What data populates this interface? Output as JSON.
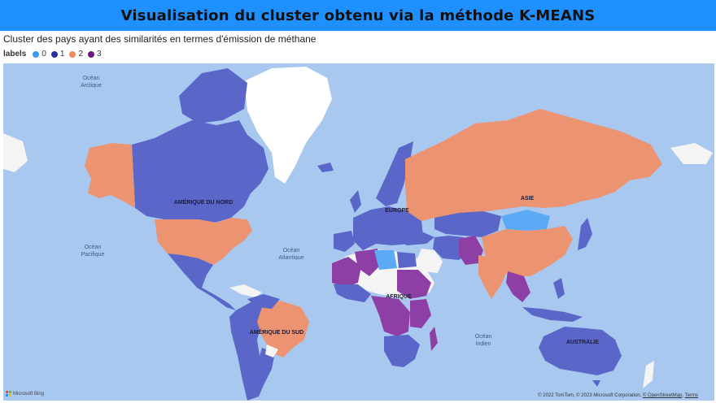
{
  "header": {
    "title": "Visualisation du cluster obtenu via la méthode K-MEANS"
  },
  "visual": {
    "subtitle": "Cluster des pays ayant des similarités en termes d'émission de méthane"
  },
  "legend": {
    "title": "labels",
    "items": [
      {
        "label": "0",
        "color": "#3a9af0"
      },
      {
        "label": "1",
        "color": "#3b4fbf"
      },
      {
        "label": "2",
        "color": "#ef8a5a"
      },
      {
        "label": "3",
        "color": "#7b1e8e"
      }
    ]
  },
  "map": {
    "labels": {
      "ocean_arctique_1": "Océan",
      "ocean_arctique_2": "Arctique",
      "ocean_pacifique_1": "Océan",
      "ocean_pacifique_2": "Pacifique",
      "ocean_atlantique_1": "Océan",
      "ocean_atlantique_2": "Atlantique",
      "ocean_indien_1": "Océan",
      "ocean_indien_2": "Indien",
      "amerique_nord": "AMÉRIQUE DU NORD",
      "amerique_sud": "AMÉRIQUE DU SUD",
      "europe": "EUROPE",
      "afrique": "AFRIQUE",
      "asie": "ASIE",
      "australie": "AUSTRALIE"
    },
    "colors": {
      "ocean": "#a9c8f0",
      "unassigned": "#f4f4f4",
      "cluster0": "#5aaaf5",
      "cluster1": "#5a67c8",
      "cluster2": "#ec9472",
      "cluster3": "#8d3fa6"
    },
    "attribution": {
      "provider": "Microsoft Bing",
      "copyright": "© 2022 TomTom, © 2023 Microsoft Corporation,",
      "osm_link": "© OpenStreetMap",
      "terms_link": "Terms"
    }
  }
}
